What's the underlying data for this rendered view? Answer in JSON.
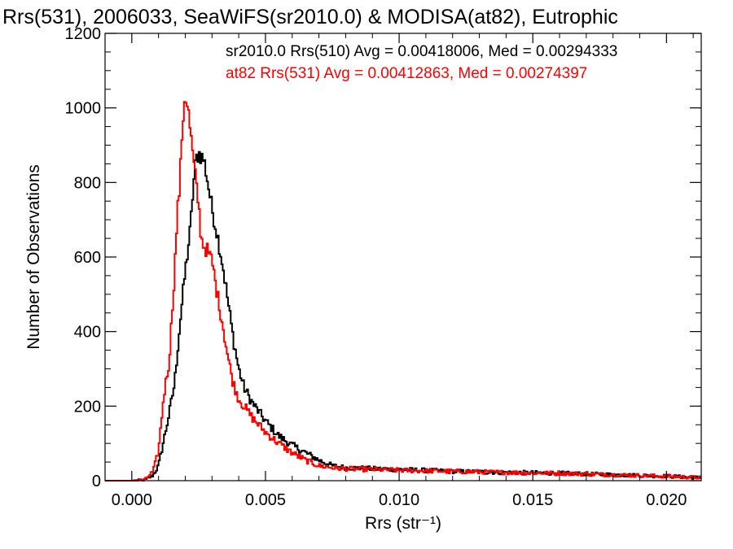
{
  "chart_data": {
    "type": "histogram",
    "title": "Rrs(531), 2006033, SeaWiFS(sr2010.0) & MODISA(at82), Eutrophic",
    "xlabel": "Rrs (str⁻¹)",
    "ylabel": "Number of Observations",
    "xlim": [
      -0.001,
      0.0213
    ],
    "ylim": [
      0,
      1200
    ],
    "xticks": [
      0.0,
      0.005,
      0.01,
      0.015,
      0.02
    ],
    "xtick_labels": [
      "0.000",
      "0.005",
      "0.010",
      "0.015",
      "0.020"
    ],
    "yticks": [
      0,
      200,
      400,
      600,
      800,
      1000,
      1200
    ],
    "ytick_labels": [
      "0",
      "200",
      "400",
      "600",
      "800",
      "1000",
      "1200"
    ],
    "grid": false,
    "legend_position": "top-right",
    "bin_width": 0.0001,
    "series": [
      {
        "name": "sr2010.0 Rrs(510)",
        "label": "sr2010.0 Rrs(510) Avg = 0.00418006, Med = 0.00294333",
        "color": "#000000",
        "points": [
          [
            -0.001,
            0
          ],
          [
            0.0,
            0
          ],
          [
            0.0005,
            2
          ],
          [
            0.0008,
            15
          ],
          [
            0.001,
            40
          ],
          [
            0.0012,
            110
          ],
          [
            0.0014,
            180
          ],
          [
            0.0016,
            260
          ],
          [
            0.0018,
            420
          ],
          [
            0.002,
            560
          ],
          [
            0.0022,
            680
          ],
          [
            0.0023,
            790
          ],
          [
            0.0024,
            860
          ],
          [
            0.0025,
            880
          ],
          [
            0.0026,
            870
          ],
          [
            0.0027,
            860
          ],
          [
            0.0028,
            820
          ],
          [
            0.003,
            730
          ],
          [
            0.0032,
            660
          ],
          [
            0.0034,
            580
          ],
          [
            0.0036,
            480
          ],
          [
            0.0038,
            380
          ],
          [
            0.004,
            300
          ],
          [
            0.0042,
            250
          ],
          [
            0.0045,
            210
          ],
          [
            0.005,
            160
          ],
          [
            0.0055,
            120
          ],
          [
            0.006,
            95
          ],
          [
            0.0065,
            75
          ],
          [
            0.007,
            55
          ],
          [
            0.0075,
            40
          ],
          [
            0.008,
            35
          ],
          [
            0.009,
            32
          ],
          [
            0.01,
            30
          ],
          [
            0.012,
            25
          ],
          [
            0.014,
            22
          ],
          [
            0.016,
            20
          ],
          [
            0.018,
            16
          ],
          [
            0.02,
            12
          ],
          [
            0.0213,
            8
          ]
        ]
      },
      {
        "name": "at82 Rrs(531)",
        "label": "at82 Rrs(531) Avg = 0.00412863, Med = 0.00274397",
        "color": "#ff0000",
        "points": [
          [
            -0.001,
            0
          ],
          [
            0.0,
            0
          ],
          [
            0.0005,
            3
          ],
          [
            0.0008,
            25
          ],
          [
            0.001,
            80
          ],
          [
            0.0012,
            230
          ],
          [
            0.0014,
            320
          ],
          [
            0.0016,
            560
          ],
          [
            0.0017,
            710
          ],
          [
            0.0018,
            800
          ],
          [
            0.0019,
            960
          ],
          [
            0.002,
            1040
          ],
          [
            0.0021,
            1000
          ],
          [
            0.0022,
            930
          ],
          [
            0.0023,
            860
          ],
          [
            0.0024,
            800
          ],
          [
            0.0025,
            740
          ],
          [
            0.0026,
            650
          ],
          [
            0.0027,
            630
          ],
          [
            0.0028,
            620
          ],
          [
            0.003,
            590
          ],
          [
            0.0032,
            500
          ],
          [
            0.0034,
            420
          ],
          [
            0.0036,
            330
          ],
          [
            0.0038,
            260
          ],
          [
            0.004,
            220
          ],
          [
            0.0042,
            200
          ],
          [
            0.0045,
            170
          ],
          [
            0.005,
            130
          ],
          [
            0.0055,
            100
          ],
          [
            0.006,
            75
          ],
          [
            0.0065,
            55
          ],
          [
            0.007,
            40
          ],
          [
            0.0075,
            35
          ],
          [
            0.008,
            32
          ],
          [
            0.009,
            30
          ],
          [
            0.01,
            28
          ],
          [
            0.012,
            25
          ],
          [
            0.014,
            22
          ],
          [
            0.016,
            20
          ],
          [
            0.018,
            16
          ],
          [
            0.02,
            12
          ],
          [
            0.0213,
            8
          ]
        ]
      }
    ]
  }
}
